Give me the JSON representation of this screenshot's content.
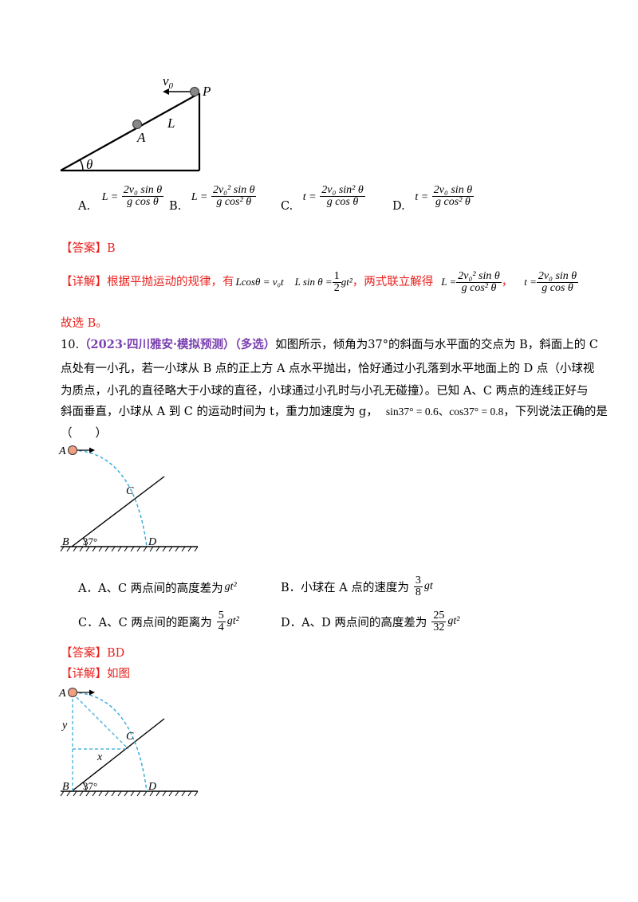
{
  "figure1": {
    "labels": {
      "v0": "v",
      "v0_sub": "0",
      "P": "P",
      "L": "L",
      "A": "A",
      "theta": "θ"
    }
  },
  "q9_options": {
    "A": {
      "letter": "A.",
      "lhs": "L =",
      "num": "2v₀ sin θ",
      "den": "g cos θ"
    },
    "B": {
      "letter": "B.",
      "lhs": "L =",
      "num": "2v₀² sin θ",
      "den": "g cos² θ"
    },
    "C": {
      "letter": "C.",
      "lhs": "t =",
      "num": "2v₀ sin² θ",
      "den": "g cos θ"
    },
    "D": {
      "letter": "D.",
      "lhs": "t =",
      "num": "2v₀ sin θ",
      "den": "g cos² θ"
    }
  },
  "q9_answer": {
    "tag": "【答案】",
    "value": "B"
  },
  "q9_detail": {
    "tag": "【详解】",
    "text1": "根据平抛运动的规律，有",
    "eq1": "Lcosθ = v₀t",
    "eq2_lhs": "L sin θ =",
    "eq2_num": "1",
    "eq2_den": "2",
    "eq2_rhs": "gt²",
    "text2": "，两式联立解得",
    "eq3_lhs": "L =",
    "eq3_num": "2v₀² sin θ",
    "eq3_den": "g cos² θ",
    "comma": "，",
    "eq4_lhs": "t =",
    "eq4_num": "2v₀ sin θ",
    "eq4_den": "g cos θ"
  },
  "q9_conclusion": "故选 B。",
  "q10": {
    "number": "10.",
    "source": "（2023·四川雅安·模拟预测）（多选）",
    "line1_rest": "如图所示，倾角为37°的斜面与水平面的交点为 B，斜面上的 C",
    "line2": "点处有一小孔，若一小球从 B 点的正上方 A 点水平抛出，恰好通过小孔落到水平地面上的 D 点（小球视",
    "line3": "为质点，小孔的直径略大于小球的直径，小球通过小孔时与小孔无碰撞）。已知 A、C 两点的连线正好与",
    "line4_a": "斜面垂直，小球从 A 到 C 的运动时间为 t，重力加速度为 g，",
    "line4_math": "sin37° = 0.6、cos37° = 0.8",
    "line4_b": "，下列说法正确的是",
    "line5": "（　　）"
  },
  "figure2": {
    "labels": {
      "A": "A",
      "C": "C",
      "B": "B",
      "D": "D",
      "angle": "37°"
    }
  },
  "q10_options": {
    "A": {
      "text": "A．A、C 两点间的高度差为",
      "math": "gt²"
    },
    "B": {
      "text": "B．小球在 A 点的速度为",
      "num": "3",
      "den": "8",
      "math": "gt"
    },
    "C": {
      "text": "C．A、C 两点间的距离为",
      "num": "5",
      "den": "4",
      "math": "gt²"
    },
    "D": {
      "text": "D．A、D 两点间的高度差为",
      "num": "25",
      "den": "32",
      "math": "gt²"
    }
  },
  "q10_answer": {
    "tag": "【答案】",
    "value": "BD"
  },
  "q10_detail": {
    "tag": "【详解】",
    "text": "如图"
  },
  "figure3": {
    "labels": {
      "A": "A",
      "C": "C",
      "B": "B",
      "D": "D",
      "angle": "37°",
      "x": "x",
      "y": "y"
    }
  },
  "colors": {
    "red": "#e8231f",
    "purple": "#7a3fb0",
    "dash_blue": "#2fa7d8",
    "ball": "#f0a080"
  }
}
